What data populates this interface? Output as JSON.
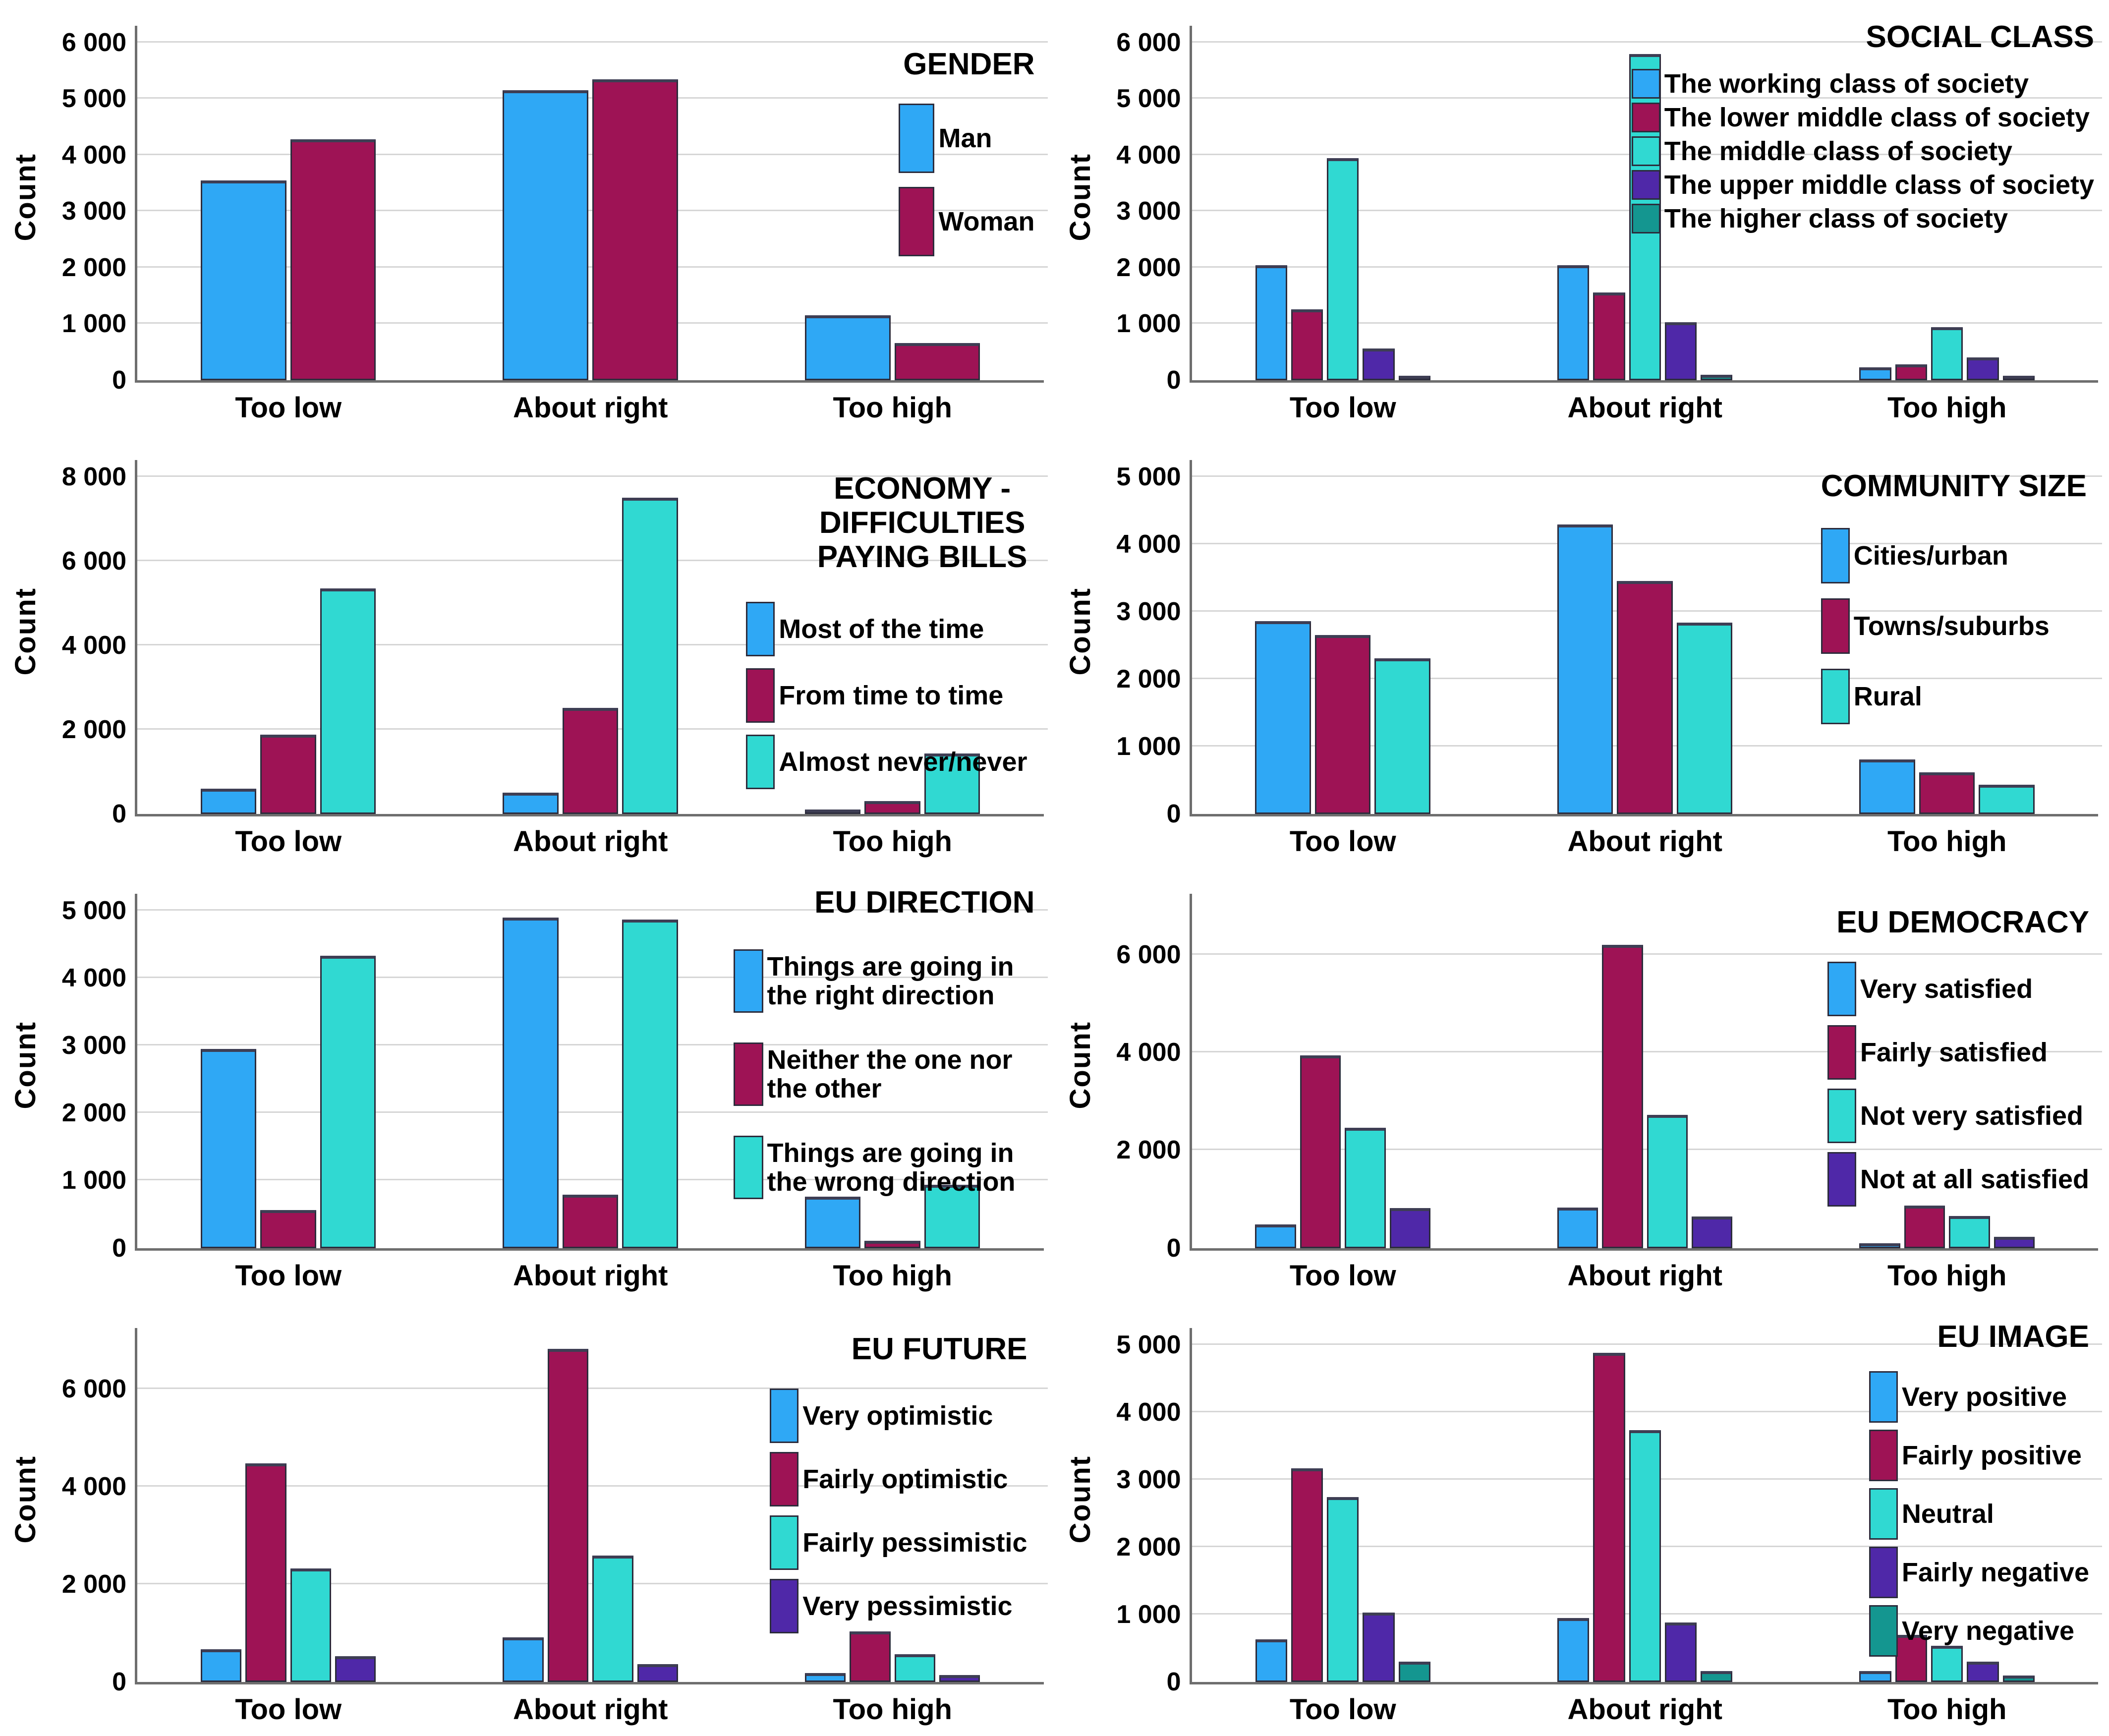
{
  "figure": {
    "y_axis_title": "Count",
    "categories": [
      "Too low",
      "About right",
      "Too high"
    ],
    "background": "#ffffff",
    "gridline_color": "#d6d6d6",
    "axis_color": "#6e6e6e"
  },
  "palette": {
    "blue": "#2FA8F5",
    "maroon": "#9E1355",
    "cyan": "#30D9D2",
    "purple": "#4F28A8",
    "teal": "#149690"
  },
  "chart_data": [
    {
      "id": "gender",
      "type": "bar",
      "title_lines": [
        "GENDER"
      ],
      "ylabel": "Count",
      "categories": [
        "Too low",
        "About right",
        "Too high"
      ],
      "ylim": [
        0,
        6300
      ],
      "yticks": [
        0,
        1000,
        2000,
        3000,
        4000,
        5000,
        6000
      ],
      "ytick_labels": [
        "0",
        "1 000",
        "2 000",
        "3 000",
        "4 000",
        "5 000",
        "6 000"
      ],
      "grid": true,
      "legend_position": "top-right",
      "series": [
        {
          "name": "Man",
          "color": "#2FA8F5",
          "values": [
            3550,
            5150,
            1150
          ]
        },
        {
          "name": "Woman",
          "color": "#9E1355",
          "values": [
            4280,
            5350,
            660
          ]
        }
      ]
    },
    {
      "id": "social-class",
      "type": "bar",
      "title_lines": [
        "SOCIAL CLASS"
      ],
      "ylabel": "Count",
      "categories": [
        "Too low",
        "About right",
        "Too high"
      ],
      "ylim": [
        0,
        6300
      ],
      "yticks": [
        0,
        1000,
        2000,
        3000,
        4000,
        5000,
        6000
      ],
      "ytick_labels": [
        "0",
        "1 000",
        "2 000",
        "3 000",
        "4 000",
        "5 000",
        "6 000"
      ],
      "grid": true,
      "legend_position": "top-right",
      "series": [
        {
          "name": "The working class of society",
          "color": "#2FA8F5",
          "values": [
            2040,
            2040,
            225
          ]
        },
        {
          "name": "The lower middle class of society",
          "color": "#9E1355",
          "values": [
            1260,
            1560,
            280
          ]
        },
        {
          "name": "The middle class of society",
          "color": "#30D9D2",
          "values": [
            3950,
            5800,
            935
          ]
        },
        {
          "name": "The upper middle class of society",
          "color": "#4F28A8",
          "values": [
            560,
            1030,
            405
          ]
        },
        {
          "name": "The higher class of society",
          "color": "#149690",
          "values": [
            60,
            95,
            35
          ]
        }
      ]
    },
    {
      "id": "economy-bills",
      "type": "bar",
      "title_lines": [
        "ECONOMY -",
        "DIFFICULTIES",
        "PAYING BILLS"
      ],
      "ylabel": "Count",
      "categories": [
        "Too low",
        "About right",
        "Too high"
      ],
      "ylim": [
        0,
        8400
      ],
      "yticks": [
        0,
        2000,
        4000,
        6000,
        8000
      ],
      "ytick_labels": [
        "0",
        "2 000",
        "4 000",
        "6 000",
        "8 000"
      ],
      "grid": true,
      "legend_position": "top-right",
      "series": [
        {
          "name": "Most of the time",
          "color": "#2FA8F5",
          "values": [
            600,
            510,
            85
          ]
        },
        {
          "name": "From time to time",
          "color": "#9E1355",
          "values": [
            1880,
            2520,
            310
          ]
        },
        {
          "name": "Almost never/never",
          "color": "#30D9D2",
          "values": [
            5350,
            7500,
            1440
          ]
        }
      ]
    },
    {
      "id": "community-size",
      "type": "bar",
      "title_lines": [
        "COMMUNITY SIZE"
      ],
      "ylabel": "Count",
      "categories": [
        "Too low",
        "About right",
        "Too high"
      ],
      "ylim": [
        0,
        5250
      ],
      "yticks": [
        0,
        1000,
        2000,
        3000,
        4000,
        5000
      ],
      "ytick_labels": [
        "0",
        "1 000",
        "2 000",
        "3 000",
        "4 000",
        "5 000"
      ],
      "grid": true,
      "legend_position": "top-right",
      "series": [
        {
          "name": "Cities/urban",
          "color": "#2FA8F5",
          "values": [
            2860,
            4290,
            805
          ]
        },
        {
          "name": "Towns/suburbs",
          "color": "#9E1355",
          "values": [
            2650,
            3450,
            620
          ]
        },
        {
          "name": "Rural",
          "color": "#30D9D2",
          "values": [
            2310,
            2840,
            430
          ]
        }
      ]
    },
    {
      "id": "eu-direction",
      "type": "bar",
      "title_lines": [
        "EU DIRECTION"
      ],
      "ylabel": "Count",
      "categories": [
        "Too low",
        "About right",
        "Too high"
      ],
      "ylim": [
        0,
        5250
      ],
      "yticks": [
        0,
        1000,
        2000,
        3000,
        4000,
        5000
      ],
      "ytick_labels": [
        "0",
        "1 000",
        "2 000",
        "3 000",
        "4 000",
        "5 000"
      ],
      "grid": true,
      "legend_position": "top-right",
      "series": [
        {
          "name": "Things are going in the right direction",
          "color": "#2FA8F5",
          "values": [
            2950,
            4900,
            760
          ]
        },
        {
          "name": "Neither the one nor the other",
          "color": "#9E1355",
          "values": [
            560,
            790,
            110
          ]
        },
        {
          "name": "Things are going in the wrong direction",
          "color": "#30D9D2",
          "values": [
            4330,
            4870,
            940
          ]
        }
      ]
    },
    {
      "id": "eu-democracy",
      "type": "bar",
      "title_lines": [
        "EU DEMOCRACY"
      ],
      "ylabel": "Count",
      "categories": [
        "Too low",
        "About right",
        "Too high"
      ],
      "ylim": [
        0,
        7250
      ],
      "yticks": [
        0,
        2000,
        4000,
        6000
      ],
      "ytick_labels": [
        "0",
        "2 000",
        "4 000",
        "6 000"
      ],
      "grid": true,
      "legend_position": "top-right",
      "series": [
        {
          "name": "Very satisfied",
          "color": "#2FA8F5",
          "values": [
            480,
            830,
            95
          ]
        },
        {
          "name": "Fairly satisfied",
          "color": "#9E1355",
          "values": [
            3940,
            6200,
            870
          ]
        },
        {
          "name": "Not very satisfied",
          "color": "#30D9D2",
          "values": [
            2460,
            2720,
            650
          ]
        },
        {
          "name": "Not at all satisfied",
          "color": "#4F28A8",
          "values": [
            820,
            640,
            230
          ]
        }
      ]
    },
    {
      "id": "eu-future",
      "type": "bar",
      "title_lines": [
        "EU FUTURE"
      ],
      "ylabel": "Count",
      "categories": [
        "Too low",
        "About right",
        "Too high"
      ],
      "ylim": [
        0,
        7250
      ],
      "yticks": [
        0,
        2000,
        4000,
        6000
      ],
      "ytick_labels": [
        "0",
        "2 000",
        "4 000",
        "6 000"
      ],
      "grid": true,
      "legend_position": "top-right",
      "series": [
        {
          "name": "Very optimistic",
          "color": "#2FA8F5",
          "values": [
            670,
            915,
            180
          ]
        },
        {
          "name": "Fairly optimistic",
          "color": "#9E1355",
          "values": [
            4480,
            6820,
            1040
          ]
        },
        {
          "name": "Fairly pessimistic",
          "color": "#30D9D2",
          "values": [
            2320,
            2590,
            565
          ]
        },
        {
          "name": "Very pessimistic",
          "color": "#4F28A8",
          "values": [
            530,
            370,
            140
          ]
        }
      ]
    },
    {
      "id": "eu-image",
      "type": "bar",
      "title_lines": [
        "EU IMAGE"
      ],
      "ylabel": "Count",
      "categories": [
        "Too low",
        "About right",
        "Too high"
      ],
      "ylim": [
        0,
        5250
      ],
      "yticks": [
        0,
        1000,
        2000,
        3000,
        4000,
        5000
      ],
      "ytick_labels": [
        "0",
        "1 000",
        "2 000",
        "3 000",
        "4 000",
        "5 000"
      ],
      "grid": true,
      "legend_position": "top-right",
      "series": [
        {
          "name": "Very positive",
          "color": "#2FA8F5",
          "values": [
            635,
            945,
            160
          ]
        },
        {
          "name": "Fairly positive",
          "color": "#9E1355",
          "values": [
            3170,
            4880,
            700
          ]
        },
        {
          "name": "Neutral",
          "color": "#30D9D2",
          "values": [
            2740,
            3730,
            540
          ]
        },
        {
          "name": "Fairly negative",
          "color": "#4F28A8",
          "values": [
            1030,
            880,
            300
          ]
        },
        {
          "name": "Very negative",
          "color": "#149690",
          "values": [
            300,
            160,
            95
          ]
        }
      ]
    }
  ]
}
